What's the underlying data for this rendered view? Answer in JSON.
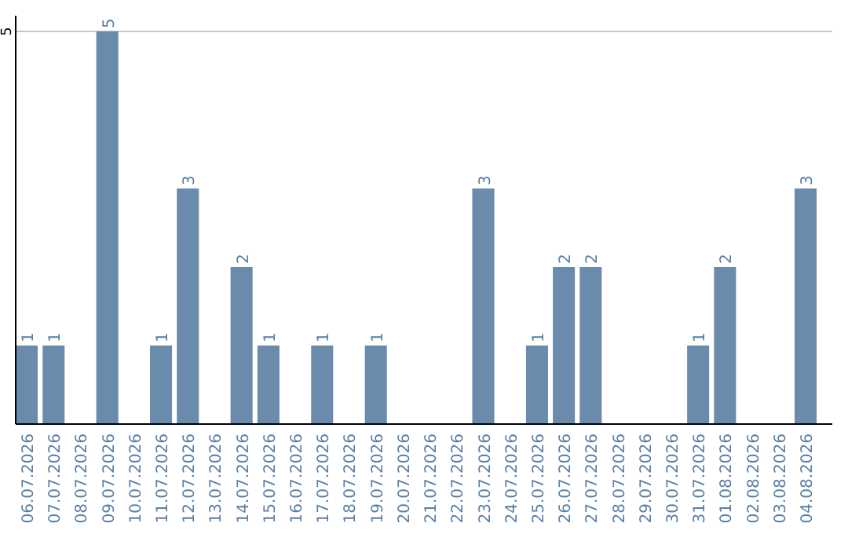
{
  "chart_data": {
    "type": "bar",
    "categories": [
      "06.07.2026",
      "07.07.2026",
      "08.07.2026",
      "09.07.2026",
      "10.07.2026",
      "11.07.2026",
      "12.07.2026",
      "13.07.2026",
      "14.07.2026",
      "15.07.2026",
      "16.07.2026",
      "17.07.2026",
      "18.07.2026",
      "19.07.2026",
      "20.07.2026",
      "21.07.2026",
      "22.07.2026",
      "23.07.2026",
      "24.07.2026",
      "25.07.2026",
      "26.07.2026",
      "27.07.2026",
      "28.07.2026",
      "29.07.2026",
      "30.07.2026",
      "31.07.2026",
      "01.08.2026",
      "02.08.2026",
      "03.08.2026",
      "04.08.2026"
    ],
    "values": [
      1,
      1,
      0,
      5,
      0,
      1,
      3,
      0,
      2,
      1,
      0,
      1,
      0,
      1,
      0,
      0,
      0,
      3,
      0,
      1,
      2,
      2,
      0,
      0,
      0,
      1,
      2,
      0,
      0,
      3
    ],
    "value_labels": [
      "1",
      "1",
      null,
      "5",
      null,
      "1",
      "3",
      null,
      "2",
      "1",
      null,
      "1",
      null,
      "1",
      null,
      null,
      null,
      "3",
      null,
      "1",
      "2",
      "2",
      null,
      null,
      null,
      "1",
      "2",
      null,
      null,
      "3"
    ],
    "color": "#6a8bab",
    "ylim": [
      0,
      5.2
    ],
    "yticks": [
      5
    ],
    "grid": "y"
  }
}
